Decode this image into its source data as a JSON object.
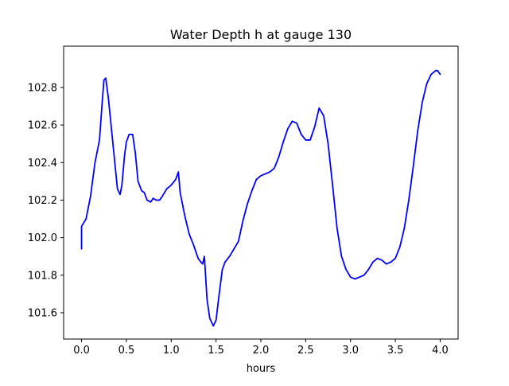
{
  "chart_data": {
    "type": "line",
    "title": "Water Depth h at gauge 130",
    "xlabel": "hours",
    "ylabel": "",
    "xlim": [
      -0.2,
      4.2
    ],
    "ylim": [
      101.46,
      103.02
    ],
    "x_ticks": [
      0.0,
      0.5,
      1.0,
      1.5,
      2.0,
      2.5,
      3.0,
      3.5,
      4.0
    ],
    "x_tick_labels": [
      "0.0",
      "0.5",
      "1.0",
      "1.5",
      "2.0",
      "2.5",
      "3.0",
      "3.5",
      "4.0"
    ],
    "y_ticks": [
      101.6,
      101.8,
      102.0,
      102.2,
      102.4,
      102.6,
      102.8
    ],
    "y_tick_labels": [
      "101.6",
      "101.8",
      "102.0",
      "102.2",
      "102.4",
      "102.6",
      "102.8"
    ],
    "grid": false,
    "legend": "none",
    "series": [
      {
        "color": "#0000ff",
        "x": [
          0.0,
          0.0,
          0.05,
          0.1,
          0.15,
          0.2,
          0.23,
          0.25,
          0.27,
          0.3,
          0.35,
          0.4,
          0.43,
          0.45,
          0.48,
          0.5,
          0.53,
          0.57,
          0.6,
          0.63,
          0.67,
          0.7,
          0.73,
          0.77,
          0.8,
          0.83,
          0.87,
          0.9,
          0.95,
          1.0,
          1.05,
          1.08,
          1.1,
          1.15,
          1.2,
          1.25,
          1.3,
          1.33,
          1.35,
          1.37,
          1.4,
          1.43,
          1.47,
          1.5,
          1.53,
          1.57,
          1.6,
          1.65,
          1.7,
          1.75,
          1.8,
          1.85,
          1.9,
          1.95,
          2.0,
          2.05,
          2.1,
          2.15,
          2.2,
          2.25,
          2.3,
          2.35,
          2.4,
          2.45,
          2.5,
          2.55,
          2.6,
          2.65,
          2.7,
          2.75,
          2.8,
          2.85,
          2.9,
          2.95,
          3.0,
          3.05,
          3.1,
          3.15,
          3.2,
          3.25,
          3.3,
          3.35,
          3.4,
          3.45,
          3.5,
          3.55,
          3.6,
          3.65,
          3.7,
          3.75,
          3.8,
          3.85,
          3.9,
          3.95,
          3.97,
          4.0
        ],
        "y": [
          101.94,
          102.06,
          102.1,
          102.22,
          102.4,
          102.52,
          102.72,
          102.84,
          102.85,
          102.74,
          102.5,
          102.26,
          102.23,
          102.28,
          102.44,
          102.51,
          102.55,
          102.55,
          102.45,
          102.3,
          102.25,
          102.24,
          102.2,
          102.19,
          102.21,
          102.2,
          102.2,
          102.22,
          102.26,
          102.28,
          102.31,
          102.35,
          102.24,
          102.12,
          102.02,
          101.96,
          101.89,
          101.87,
          101.86,
          101.9,
          101.67,
          101.57,
          101.53,
          101.56,
          101.68,
          101.83,
          101.87,
          101.9,
          101.94,
          101.98,
          102.09,
          102.18,
          102.25,
          102.31,
          102.33,
          102.34,
          102.35,
          102.37,
          102.43,
          102.51,
          102.58,
          102.62,
          102.61,
          102.55,
          102.52,
          102.52,
          102.59,
          102.69,
          102.65,
          102.5,
          102.28,
          102.05,
          101.9,
          101.83,
          101.79,
          101.78,
          101.79,
          101.8,
          101.83,
          101.87,
          101.89,
          101.88,
          101.86,
          101.87,
          101.89,
          101.95,
          102.05,
          102.2,
          102.38,
          102.57,
          102.72,
          102.82,
          102.87,
          102.89,
          102.89,
          102.87
        ]
      }
    ]
  }
}
